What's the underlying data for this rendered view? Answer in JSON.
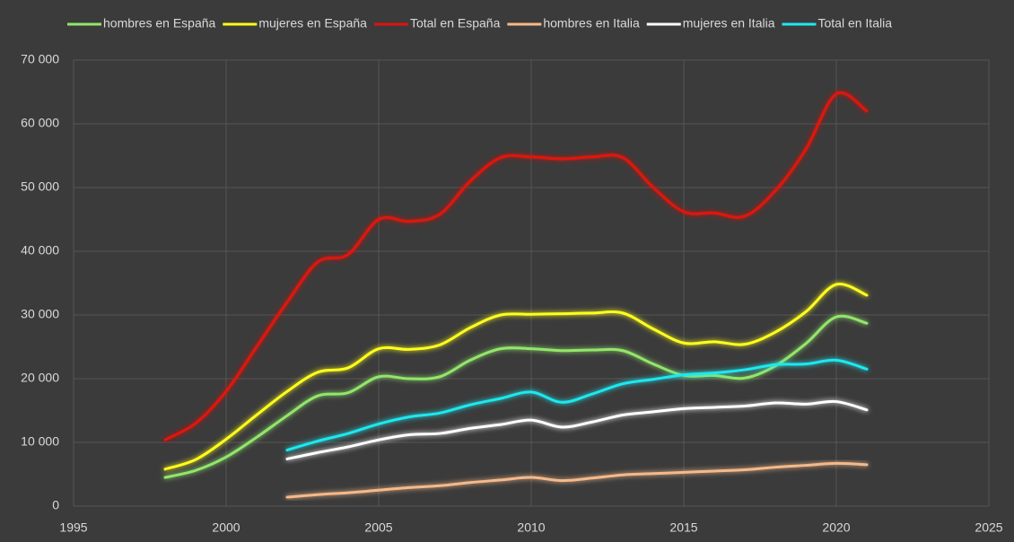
{
  "chart_data": {
    "type": "line",
    "x": [
      1998,
      1999,
      2000,
      2001,
      2002,
      2003,
      2004,
      2005,
      2006,
      2007,
      2008,
      2009,
      2010,
      2011,
      2012,
      2013,
      2014,
      2015,
      2016,
      2017,
      2018,
      2019,
      2020,
      2021
    ],
    "series": [
      {
        "name": "hombres en España",
        "color": "#92e66a",
        "values": [
          4500,
          5600,
          7700,
          10800,
          14200,
          17300,
          17800,
          20300,
          20000,
          20300,
          22900,
          24700,
          24700,
          24400,
          24500,
          24400,
          22300,
          20500,
          20500,
          20100,
          22000,
          25500,
          29700,
          28700
        ]
      },
      {
        "name": "mujeres en España",
        "color": "#ffff1a",
        "values": [
          5800,
          7300,
          10500,
          14300,
          18000,
          21000,
          21700,
          24700,
          24600,
          25300,
          28000,
          30000,
          30100,
          30200,
          30300,
          30300,
          27800,
          25600,
          25800,
          25400,
          27300,
          30500,
          34800,
          33100
        ]
      },
      {
        "name": "Total en España",
        "color": "#e0120e",
        "values": [
          10400,
          13000,
          18000,
          25000,
          32000,
          38300,
          39500,
          45000,
          44700,
          45800,
          51000,
          54700,
          54800,
          54500,
          54800,
          54700,
          50000,
          46200,
          46000,
          45500,
          49500,
          56000,
          64700,
          62000
        ]
      },
      {
        "name": "hombres en Italia",
        "color": "#f5b98a",
        "values": [
          null,
          null,
          null,
          null,
          1400,
          1800,
          2100,
          2500,
          2900,
          3200,
          3700,
          4100,
          4500,
          4000,
          4400,
          4900,
          5100,
          5300,
          5500,
          5700,
          6100,
          6400,
          6700,
          6500
        ]
      },
      {
        "name": "mujeres en Italia",
        "color": "#ffffff",
        "values": [
          null,
          null,
          null,
          null,
          7400,
          8400,
          9300,
          10400,
          11200,
          11400,
          12200,
          12800,
          13500,
          12400,
          13200,
          14300,
          14800,
          15300,
          15500,
          15700,
          16200,
          16000,
          16400,
          15100
        ]
      },
      {
        "name": "Total en Italia",
        "color": "#1ee8f0",
        "values": [
          null,
          null,
          null,
          null,
          8800,
          10200,
          11400,
          12900,
          14000,
          14600,
          15900,
          16900,
          17900,
          16300,
          17600,
          19200,
          19900,
          20600,
          20900,
          21400,
          22200,
          22300,
          22900,
          21500
        ]
      }
    ],
    "xlim": [
      1995,
      2025
    ],
    "xticks": [
      1995,
      2000,
      2005,
      2010,
      2015,
      2020,
      2025
    ],
    "ylim": [
      0,
      70000
    ],
    "yticks": [
      0,
      {
        "value": 10000,
        "label": "10 000"
      },
      {
        "value": 20000,
        "label": "20 000"
      },
      {
        "value": 30000,
        "label": "30 000"
      },
      {
        "value": 40000,
        "label": "40 000"
      },
      {
        "value": 50000,
        "label": "50 000"
      },
      {
        "value": 60000,
        "label": "60 000"
      },
      {
        "value": 70000,
        "label": "70 000"
      }
    ],
    "grid": true,
    "legend": "top"
  }
}
